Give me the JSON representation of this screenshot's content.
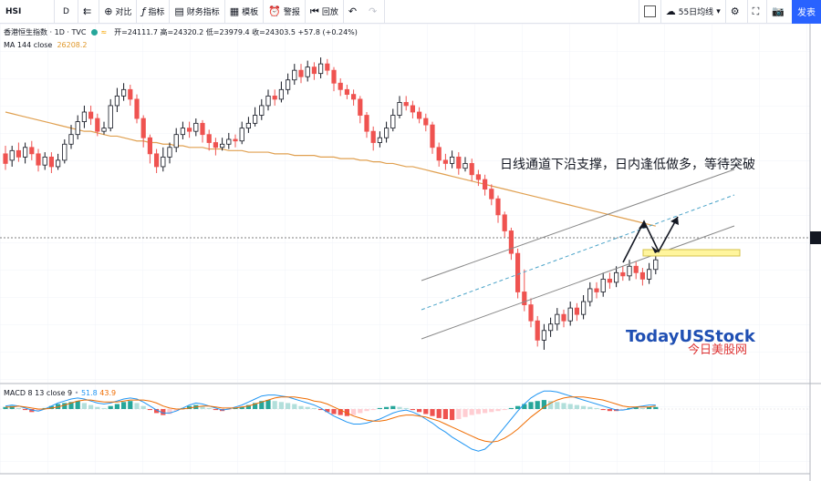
{
  "toolbar": {
    "symbol": "HSI",
    "interval": "D",
    "compare": "对比",
    "indicators": "指标",
    "financials": "财务指标",
    "templates": "模板",
    "alert": "警报",
    "replay": "回放",
    "ma_setting": "55日均线",
    "publish": "发表",
    "icons": [
      "candle-icon",
      "plus-circle-icon",
      "indicator-icon",
      "financial-icon",
      "template-icon",
      "alarm-icon",
      "replay-icon",
      "undo-icon",
      "redo-icon",
      "cloud-icon",
      "gear-icon",
      "fullscreen-icon",
      "camera-icon"
    ]
  },
  "legend": {
    "title": "香港恒生指数 · 1D · TVC",
    "ohlc": "开=24111.7 高=24320.2 低=23979.4 收=24303.5 +57.8 (+0.24%)",
    "ma_label": "MA 144 close",
    "ma_value": "26208.2"
  },
  "annotation": "日线通道下沿支撑，日内逢低做多，等待突破",
  "watermark": {
    "line1": "TodayUSStock",
    "line2": "今日美股网"
  },
  "macd_legend": {
    "label": "MACD 8 13 close 9",
    "v1": "51.8",
    "v2": "43.9"
  },
  "colors": {
    "up": "#26a69a",
    "down": "#ef5350",
    "ma": "#e0a050",
    "macd": "#2196f3",
    "signal": "#ef6c00",
    "highlight": "#fff176"
  },
  "chart_data": {
    "type": "candlestick",
    "candles": [
      [
        156,
        150,
        161,
        146
      ],
      [
        152,
        158,
        161,
        148
      ],
      [
        158,
        154,
        163,
        151
      ],
      [
        154,
        160,
        163,
        150
      ],
      [
        160,
        156,
        164,
        152
      ],
      [
        156,
        149,
        159,
        145
      ],
      [
        149,
        154,
        157,
        146
      ],
      [
        154,
        148,
        157,
        144
      ],
      [
        148,
        152,
        156,
        146
      ],
      [
        152,
        162,
        165,
        150
      ],
      [
        162,
        168,
        174,
        159
      ],
      [
        168,
        176,
        180,
        165
      ],
      [
        176,
        182,
        186,
        172
      ],
      [
        182,
        178,
        186,
        174
      ],
      [
        178,
        170,
        181,
        167
      ],
      [
        170,
        172,
        176,
        168
      ],
      [
        172,
        186,
        190,
        170
      ],
      [
        186,
        192,
        197,
        182
      ],
      [
        192,
        196,
        200,
        189
      ],
      [
        196,
        190,
        199,
        186
      ],
      [
        190,
        178,
        193,
        175
      ],
      [
        178,
        166,
        180,
        160
      ],
      [
        166,
        156,
        168,
        150
      ],
      [
        156,
        148,
        159,
        144
      ],
      [
        148,
        154,
        160,
        145
      ],
      [
        154,
        160,
        163,
        150
      ],
      [
        160,
        168,
        172,
        157
      ],
      [
        168,
        172,
        176,
        165
      ],
      [
        172,
        170,
        176,
        166
      ],
      [
        170,
        175,
        178,
        167
      ],
      [
        175,
        168,
        177,
        163
      ],
      [
        168,
        163,
        171,
        158
      ],
      [
        163,
        160,
        166,
        155
      ],
      [
        160,
        162,
        166,
        158
      ],
      [
        162,
        165,
        169,
        159
      ],
      [
        165,
        164,
        168,
        160
      ],
      [
        164,
        172,
        176,
        162
      ],
      [
        172,
        175,
        179,
        169
      ],
      [
        175,
        180,
        185,
        173
      ],
      [
        180,
        186,
        190,
        177
      ],
      [
        186,
        192,
        196,
        183
      ],
      [
        192,
        190,
        196,
        186
      ],
      [
        190,
        196,
        201,
        188
      ],
      [
        196,
        202,
        206,
        193
      ],
      [
        202,
        208,
        212,
        199
      ],
      [
        208,
        204,
        212,
        200
      ],
      [
        204,
        210,
        214,
        201
      ],
      [
        210,
        206,
        213,
        202
      ],
      [
        206,
        212,
        216,
        203
      ],
      [
        212,
        208,
        215,
        205
      ],
      [
        208,
        200,
        210,
        195
      ],
      [
        200,
        196,
        203,
        192
      ],
      [
        196,
        193,
        199,
        190
      ],
      [
        193,
        190,
        196,
        186
      ],
      [
        190,
        180,
        192,
        175
      ],
      [
        180,
        170,
        182,
        166
      ],
      [
        170,
        163,
        173,
        158
      ],
      [
        163,
        166,
        170,
        160
      ],
      [
        166,
        172,
        176,
        163
      ],
      [
        172,
        180,
        184,
        170
      ],
      [
        180,
        188,
        192,
        178
      ],
      [
        188,
        186,
        192,
        183
      ],
      [
        186,
        182,
        189,
        178
      ],
      [
        182,
        178,
        185,
        175
      ],
      [
        178,
        174,
        181,
        170
      ],
      [
        174,
        160,
        176,
        156
      ],
      [
        160,
        152,
        163,
        148
      ],
      [
        152,
        150,
        156,
        146
      ],
      [
        150,
        154,
        158,
        147
      ],
      [
        154,
        147,
        157,
        143
      ],
      [
        147,
        150,
        154,
        145
      ],
      [
        150,
        143,
        153,
        139
      ],
      [
        143,
        140,
        146,
        136
      ],
      [
        140,
        134,
        143,
        130
      ],
      [
        134,
        128,
        137,
        124
      ],
      [
        128,
        118,
        130,
        113
      ],
      [
        118,
        108,
        120,
        104
      ],
      [
        108,
        94,
        110,
        90
      ],
      [
        94,
        70,
        97,
        66
      ],
      [
        70,
        62,
        84,
        58
      ],
      [
        62,
        52,
        66,
        48
      ],
      [
        52,
        40,
        55,
        36
      ],
      [
        40,
        46,
        50,
        34
      ],
      [
        46,
        50,
        54,
        42
      ],
      [
        50,
        56,
        60,
        46
      ],
      [
        56,
        52,
        59,
        48
      ],
      [
        52,
        60,
        64,
        49
      ],
      [
        60,
        56,
        63,
        52
      ],
      [
        56,
        64,
        68,
        53
      ],
      [
        64,
        72,
        76,
        61
      ],
      [
        72,
        70,
        76,
        66
      ],
      [
        70,
        78,
        82,
        67
      ],
      [
        78,
        76,
        82,
        72
      ],
      [
        76,
        82,
        86,
        73
      ],
      [
        82,
        80,
        86,
        77
      ],
      [
        80,
        86,
        90,
        77
      ],
      [
        86,
        82,
        89,
        78
      ],
      [
        82,
        78,
        85,
        74
      ],
      [
        78,
        84,
        88,
        75
      ],
      [
        84,
        90,
        94,
        81
      ]
    ],
    "ma144": [
      182,
      181,
      180,
      179,
      178,
      177,
      176,
      175,
      174,
      173,
      172,
      171,
      170,
      170,
      169,
      168,
      167,
      167,
      166,
      165,
      164,
      164,
      163,
      163,
      162,
      162,
      161,
      161,
      160,
      160,
      160,
      159,
      159,
      159,
      158,
      158,
      158,
      157,
      157,
      157,
      157,
      156,
      156,
      156,
      155,
      155,
      155,
      155,
      154,
      154,
      154,
      153,
      153,
      153,
      152,
      152,
      151,
      151,
      150,
      150,
      149,
      148,
      148,
      147,
      146,
      145,
      144,
      143,
      142,
      141,
      140,
      139,
      138,
      137,
      136,
      135,
      134,
      133,
      132,
      131,
      130,
      129,
      128,
      127,
      126,
      125,
      124,
      123,
      122,
      121,
      120,
      119,
      118,
      117,
      116,
      115,
      114,
      113,
      112,
      111
    ],
    "macd_hist": [
      2,
      3,
      1,
      -1,
      -3,
      -2,
      1,
      3,
      5,
      6,
      7,
      8,
      6,
      4,
      2,
      1,
      3,
      5,
      7,
      8,
      6,
      3,
      -1,
      -4,
      -6,
      -5,
      -2,
      1,
      3,
      4,
      3,
      1,
      -1,
      -2,
      -1,
      1,
      2,
      4,
      6,
      8,
      9,
      8,
      7,
      6,
      5,
      3,
      2,
      1,
      -1,
      -3,
      -5,
      -6,
      -7,
      -6,
      -4,
      -2,
      -1,
      1,
      2,
      3,
      2,
      1,
      -1,
      -3,
      -5,
      -7,
      -9,
      -10,
      -11,
      -10,
      -8,
      -6,
      -5,
      -4,
      -3,
      -2,
      -1,
      1,
      3,
      5,
      7,
      8,
      9,
      8,
      7,
      6,
      5,
      4,
      3,
      2,
      1,
      -1,
      -2,
      -2,
      -1,
      1,
      2,
      1,
      2,
      2
    ],
    "macd_line": [
      3,
      4,
      3,
      1,
      -1,
      -2,
      0,
      3,
      6,
      8,
      10,
      11,
      10,
      8,
      6,
      5,
      6,
      8,
      10,
      11,
      10,
      7,
      3,
      -1,
      -4,
      -4,
      -2,
      1,
      4,
      6,
      5,
      3,
      1,
      -1,
      0,
      2,
      4,
      7,
      10,
      13,
      14,
      14,
      13,
      12,
      10,
      8,
      6,
      4,
      1,
      -3,
      -7,
      -10,
      -13,
      -15,
      -15,
      -14,
      -12,
      -10,
      -7,
      -4,
      -2,
      -1,
      -3,
      -6,
      -10,
      -14,
      -19,
      -23,
      -28,
      -32,
      -36,
      -40,
      -42,
      -40,
      -34,
      -26,
      -18,
      -10,
      -2,
      5,
      11,
      15,
      18,
      18,
      17,
      15,
      13,
      11,
      9,
      7,
      5,
      3,
      1,
      -1,
      -1,
      0,
      2,
      3,
      4,
      4
    ],
    "signal_line": [
      2,
      2,
      3,
      2,
      1,
      0,
      0,
      1,
      2,
      4,
      6,
      8,
      9,
      9,
      8,
      7,
      7,
      7,
      8,
      9,
      9,
      9,
      8,
      6,
      3,
      1,
      0,
      0,
      1,
      2,
      3,
      3,
      2,
      1,
      1,
      1,
      2,
      3,
      5,
      7,
      9,
      11,
      12,
      12,
      12,
      11,
      10,
      8,
      7,
      5,
      2,
      -1,
      -4,
      -7,
      -9,
      -11,
      -12,
      -12,
      -11,
      -9,
      -7,
      -6,
      -6,
      -7,
      -8,
      -10,
      -12,
      -15,
      -18,
      -21,
      -24,
      -27,
      -30,
      -32,
      -33,
      -32,
      -29,
      -25,
      -20,
      -14,
      -8,
      -3,
      2,
      6,
      9,
      11,
      12,
      12,
      12,
      11,
      10,
      9,
      7,
      5,
      3,
      2,
      2,
      2,
      2,
      3
    ]
  }
}
